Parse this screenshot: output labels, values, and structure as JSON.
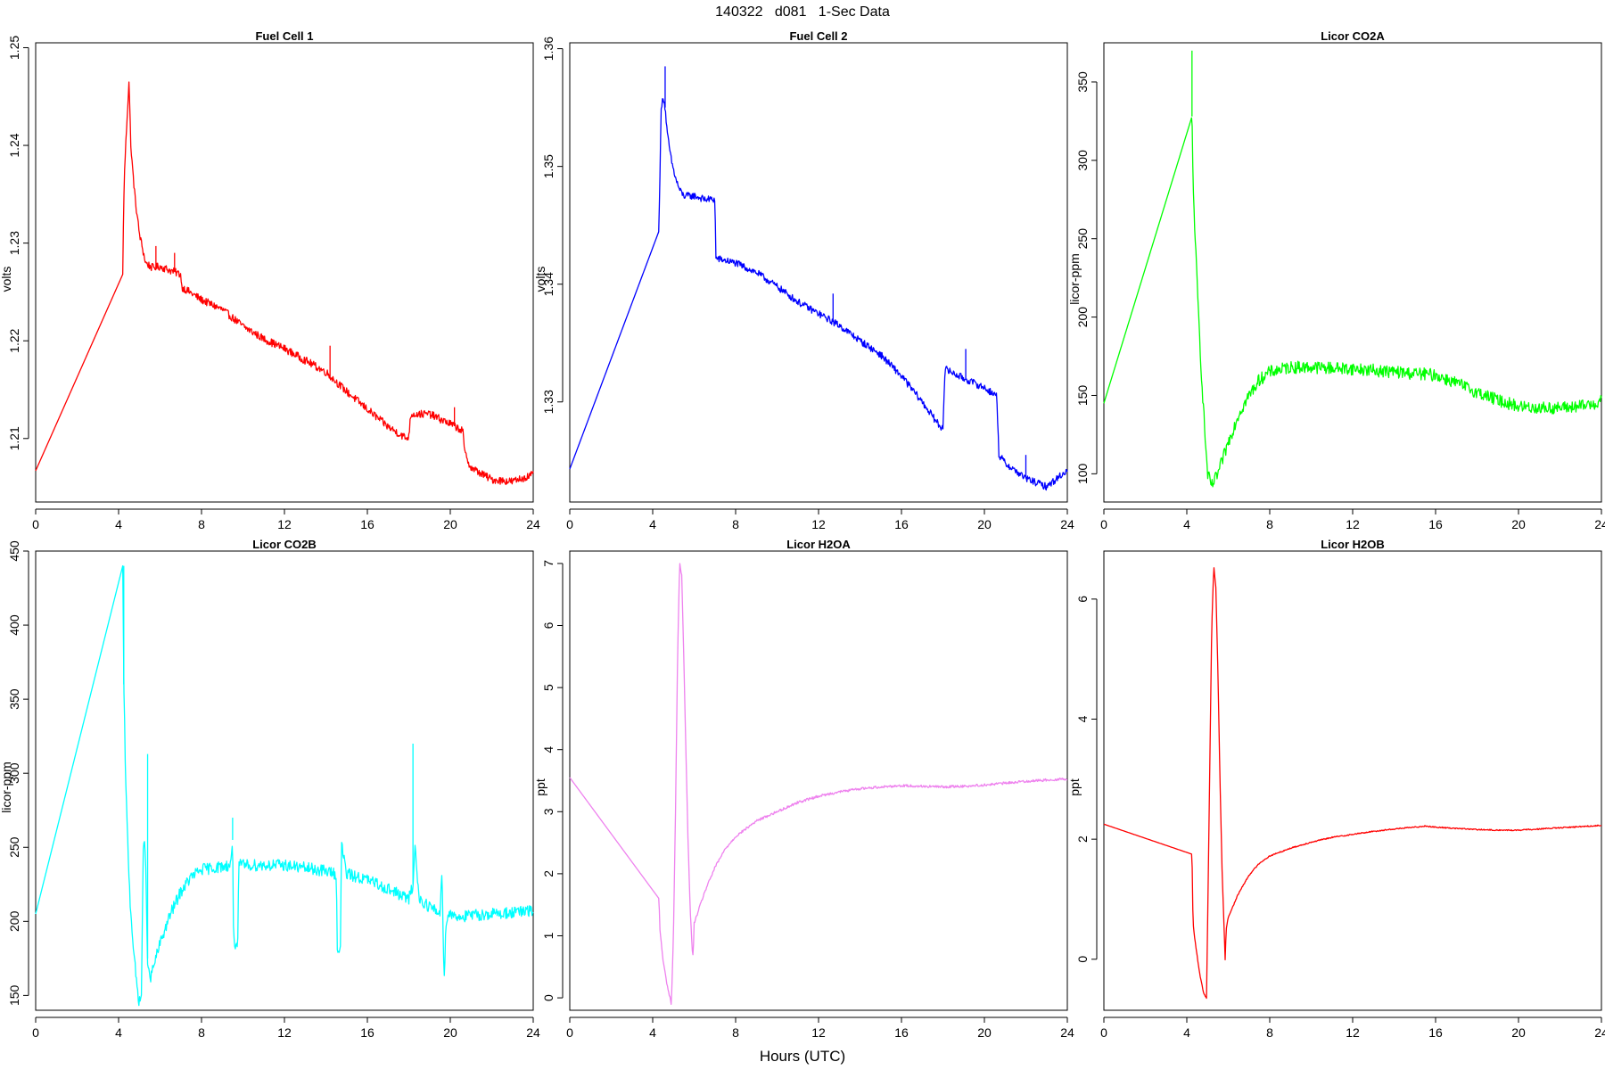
{
  "figure": {
    "title": "140322   d081   1-Sec Data",
    "xlabel": "Hours (UTC)"
  },
  "chart_data": [
    {
      "type": "line",
      "title": "Fuel Cell 1",
      "ylabel": "volts",
      "color": "#ff0000",
      "noise": 0.0004,
      "xlim": [
        0,
        24
      ],
      "ylim": [
        1.2035,
        1.2505
      ],
      "xticks": [
        0,
        4,
        8,
        12,
        16,
        20,
        24
      ],
      "yticks": [
        1.21,
        1.22,
        1.23,
        1.24,
        1.25
      ],
      "series": [
        {
          "x": [
            0,
            4.2,
            4.25,
            4.3,
            4.4,
            4.5,
            4.55,
            4.6,
            4.8,
            5.0,
            5.3,
            5.6,
            6.0,
            6.5,
            7.0,
            7.05,
            8.0,
            9.0,
            10.0,
            11.0,
            12.0,
            13.0,
            14.0,
            15.0,
            16.0,
            17.0,
            17.9,
            18.0,
            18.1,
            19.0,
            20.0,
            20.6,
            20.7,
            21.0,
            21.5,
            22.0,
            23.0,
            24.0
          ],
          "y": [
            1.2067,
            1.2268,
            1.2345,
            1.238,
            1.2425,
            1.2465,
            1.243,
            1.2395,
            1.2345,
            1.231,
            1.228,
            1.2275,
            1.2276,
            1.2272,
            1.2268,
            1.2255,
            1.2242,
            1.2232,
            1.2215,
            1.2202,
            1.2192,
            1.218,
            1.2168,
            1.2148,
            1.213,
            1.2112,
            1.21,
            1.2103,
            1.2125,
            1.2125,
            1.2115,
            1.2108,
            1.2085,
            1.207,
            1.2064,
            1.2058,
            1.2056,
            1.2063
          ]
        }
      ],
      "spikes": [
        [
          5.8,
          1.2297
        ],
        [
          6.7,
          1.229
        ],
        [
          14.2,
          1.2195
        ],
        [
          20.2,
          1.2132
        ]
      ]
    },
    {
      "type": "line",
      "title": "Fuel Cell 2",
      "ylabel": "volts",
      "color": "#0000ff",
      "noise": 0.0003,
      "xlim": [
        0,
        24
      ],
      "ylim": [
        1.3215,
        1.3605
      ],
      "xticks": [
        0,
        4,
        8,
        12,
        16,
        20,
        24
      ],
      "yticks": [
        1.33,
        1.34,
        1.35,
        1.36
      ],
      "series": [
        {
          "x": [
            0,
            4.3,
            4.4,
            4.5,
            4.6,
            4.7,
            4.9,
            5.1,
            5.3,
            5.5,
            6.0,
            6.5,
            7.0,
            7.05,
            8.0,
            9.0,
            10.0,
            11.0,
            12.0,
            12.7,
            13.0,
            14.0,
            15.0,
            16.0,
            17.0,
            17.9,
            18.0,
            18.1,
            19.0,
            20.0,
            20.6,
            20.7,
            21.0,
            22.0,
            23.0,
            24.0
          ],
          "y": [
            1.3243,
            1.3445,
            1.3545,
            1.356,
            1.355,
            1.3528,
            1.3505,
            1.349,
            1.348,
            1.3475,
            1.3475,
            1.3472,
            1.3472,
            1.3422,
            1.3418,
            1.341,
            1.3398,
            1.3385,
            1.3375,
            1.3368,
            1.3365,
            1.3352,
            1.334,
            1.3322,
            1.33,
            1.3278,
            1.328,
            1.3328,
            1.332,
            1.3312,
            1.3305,
            1.3255,
            1.3248,
            1.3235,
            1.3228,
            1.3242
          ]
        }
      ],
      "spikes": [
        [
          4.6,
          1.3585
        ],
        [
          12.7,
          1.3392
        ],
        [
          19.1,
          1.3345
        ],
        [
          22.0,
          1.3255
        ]
      ]
    },
    {
      "type": "line",
      "title": "Licor CO2A",
      "ylabel": "licor-ppm",
      "color": "#00ff00",
      "noise": 4,
      "xlim": [
        0,
        24
      ],
      "ylim": [
        82,
        375
      ],
      "xticks": [
        0,
        4,
        8,
        12,
        16,
        20,
        24
      ],
      "yticks": [
        100,
        150,
        200,
        250,
        300,
        350
      ],
      "series": [
        {
          "x": [
            0,
            4.25,
            4.3,
            4.5,
            4.7,
            4.9,
            5.0,
            5.2,
            5.5,
            6.0,
            6.5,
            7.0,
            7.5,
            8.0,
            9.0,
            10.0,
            12.0,
            14.0,
            15.0,
            16.0,
            17.0,
            18.0,
            19.0,
            20.0,
            21.0,
            22.0,
            23.0,
            24.0
          ],
          "y": [
            145,
            328,
            285,
            220,
            165,
            120,
            100,
            92,
            100,
            120,
            138,
            150,
            160,
            165,
            168,
            168,
            167,
            165,
            164,
            163,
            158,
            152,
            147,
            143,
            142,
            142,
            143,
            146
          ]
        }
      ],
      "spikes": [
        [
          4.25,
          370
        ]
      ]
    },
    {
      "type": "line",
      "title": "Licor CO2B",
      "ylabel": "licor-ppm",
      "color": "#00ffff",
      "noise": 4,
      "xlim": [
        0,
        24
      ],
      "ylim": [
        140,
        450
      ],
      "xticks": [
        0,
        4,
        8,
        12,
        16,
        20,
        24
      ],
      "yticks": [
        150,
        200,
        250,
        300,
        350,
        400,
        450
      ],
      "series": [
        {
          "x": [
            0,
            4.2,
            4.25,
            4.35,
            4.45,
            4.55,
            4.7,
            4.85,
            5.0,
            5.1,
            5.2,
            5.3,
            5.4,
            5.5,
            5.7,
            6.0,
            6.5,
            7.0,
            7.5,
            8.0,
            9.0,
            9.4,
            9.5,
            9.55,
            9.75,
            9.8,
            9.85,
            10.0,
            12.0,
            14.0,
            14.5,
            14.55,
            14.7,
            14.75,
            15.0,
            16.0,
            17.0,
            18.0,
            18.2,
            18.3,
            18.5,
            19.0,
            19.5,
            19.6,
            19.7,
            19.8,
            19.9,
            20.0,
            20.5,
            21.0,
            22.0,
            23.0,
            24.0
          ],
          "y": [
            205,
            440,
            360,
            290,
            250,
            215,
            185,
            160,
            145,
            150,
            260,
            240,
            175,
            160,
            170,
            185,
            205,
            220,
            230,
            235,
            237,
            238,
            255,
            185,
            185,
            238,
            238,
            238,
            238,
            234,
            232,
            182,
            182,
            252,
            232,
            228,
            222,
            215,
            225,
            250,
            215,
            210,
            205,
            235,
            160,
            200,
            205,
            205,
            203,
            204,
            205,
            206,
            207
          ]
        }
      ],
      "spikes": [
        [
          4.25,
          440
        ],
        [
          5.4,
          313
        ],
        [
          9.5,
          270
        ],
        [
          18.2,
          320
        ]
      ]
    },
    {
      "type": "line",
      "title": "Licor H2OA",
      "ylabel": "ppt",
      "color": "#ee82ee",
      "noise": 0.02,
      "xlim": [
        0,
        24
      ],
      "ylim": [
        -0.2,
        7.2
      ],
      "xticks": [
        0,
        4,
        8,
        12,
        16,
        20,
        24
      ],
      "yticks": [
        0,
        1,
        2,
        3,
        4,
        5,
        6,
        7
      ],
      "series": [
        {
          "x": [
            0,
            4.3,
            4.35,
            4.5,
            4.7,
            4.9,
            5.0,
            5.1,
            5.2,
            5.3,
            5.4,
            5.5,
            5.6,
            5.7,
            5.8,
            5.9,
            5.95,
            6.0,
            6.5,
            7.0,
            7.5,
            8.0,
            9.0,
            10.0,
            11.0,
            12.0,
            13.0,
            14.0,
            15.0,
            16.0,
            17.0,
            18.0,
            19.0,
            20.0,
            21.0,
            22.0,
            23.0,
            24.0
          ],
          "y": [
            3.55,
            1.6,
            1.1,
            0.6,
            0.2,
            -0.1,
            1.0,
            3.0,
            5.5,
            7.0,
            6.8,
            5.5,
            4.0,
            2.6,
            1.5,
            0.8,
            0.65,
            1.2,
            1.7,
            2.1,
            2.4,
            2.6,
            2.85,
            3.0,
            3.15,
            3.25,
            3.32,
            3.37,
            3.4,
            3.42,
            3.41,
            3.4,
            3.41,
            3.43,
            3.46,
            3.49,
            3.51,
            3.53
          ]
        }
      ],
      "spikes": []
    },
    {
      "type": "line",
      "title": "Licor H2OB",
      "ylabel": "ppt",
      "color": "#ff0000",
      "noise": 0.01,
      "xlim": [
        0,
        24
      ],
      "ylim": [
        -0.85,
        6.8
      ],
      "xticks": [
        0,
        4,
        8,
        12,
        16,
        20,
        24
      ],
      "yticks": [
        0,
        2,
        4,
        6
      ],
      "series": [
        {
          "x": [
            0,
            4.25,
            4.3,
            4.4,
            4.6,
            4.8,
            4.95,
            5.0,
            5.1,
            5.2,
            5.3,
            5.4,
            5.5,
            5.6,
            5.7,
            5.8,
            5.85,
            5.9,
            6.0,
            6.5,
            7.0,
            7.5,
            8.0,
            9.0,
            10.0,
            11.0,
            12.0,
            13.0,
            14.0,
            15.0,
            15.5,
            16.0,
            17.0,
            18.0,
            19.0,
            20.0,
            21.0,
            22.0,
            23.0,
            24.0
          ],
          "y": [
            2.25,
            1.75,
            0.6,
            0.3,
            -0.2,
            -0.55,
            -0.65,
            0.5,
            3.0,
            5.5,
            6.55,
            6.2,
            4.8,
            3.0,
            1.5,
            0.5,
            0.0,
            0.5,
            0.7,
            1.1,
            1.4,
            1.6,
            1.72,
            1.85,
            1.95,
            2.03,
            2.08,
            2.13,
            2.17,
            2.2,
            2.22,
            2.2,
            2.18,
            2.16,
            2.15,
            2.15,
            2.17,
            2.19,
            2.21,
            2.23
          ]
        }
      ],
      "spikes": []
    }
  ]
}
